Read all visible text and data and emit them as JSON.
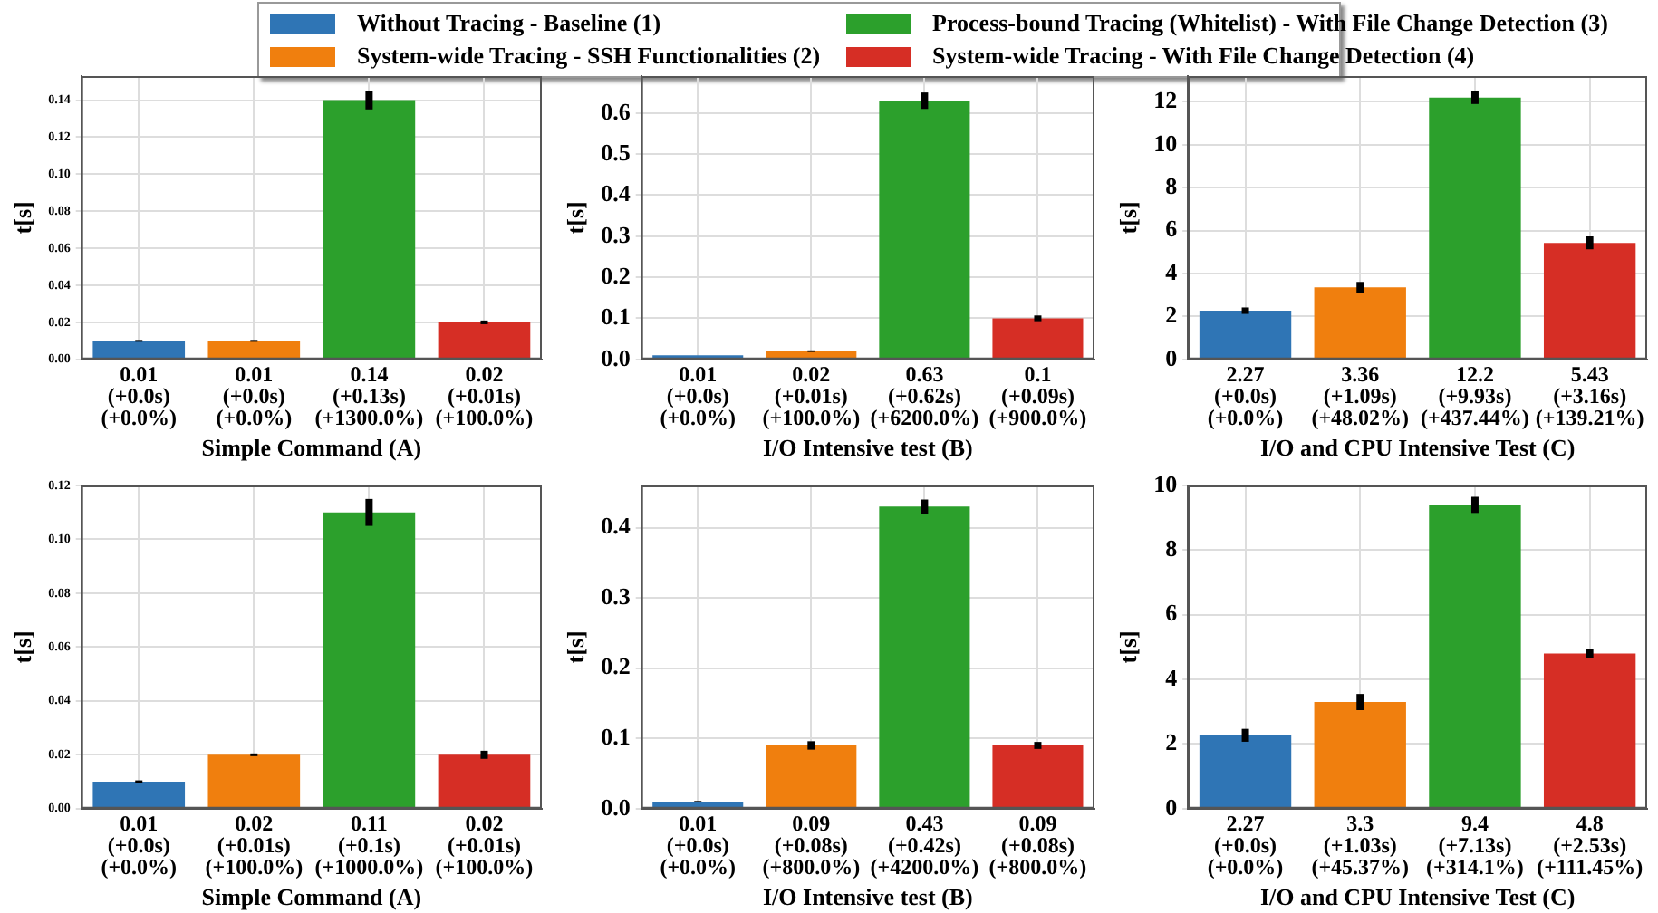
{
  "chart_data": [
    {
      "type": "bar",
      "xlabel": "Simple Command (A)",
      "ylabel": "t[s]",
      "legend": "top",
      "stacked": true,
      "grid": true,
      "categories": [
        "0.01\n(+0.0s)\n(+0.0%)",
        "0.01\n(+0.0s)\n(+0.0%)",
        "0.14\n(+0.13s)\n(+1300.0%)",
        "0.02\n(+0.01s)\n(+100.0%)"
      ],
      "ylim": [
        0,
        0.153
      ],
      "yticks": [
        {
          "value": 0,
          "label": "0.00"
        },
        {
          "value": 0.02,
          "label": "0.02"
        },
        {
          "value": 0.04,
          "label": "0.04"
        },
        {
          "value": 0.06,
          "label": "0.06"
        },
        {
          "value": 0.08,
          "label": "0.08"
        },
        {
          "value": 0.1,
          "label": "0.10"
        },
        {
          "value": 0.12,
          "label": "0.12"
        },
        {
          "value": 0.14,
          "label": "0.14"
        }
      ],
      "series": [
        {
          "name": "Without Tracing - Baseline (1)",
          "color": "#2f75b5",
          "values": [
            0.01,
            null,
            null,
            null
          ],
          "errors": [
            0.0005,
            null,
            null,
            null
          ]
        },
        {
          "name": "System-wide Tracing - SSH Functionalities (2)",
          "color": "#f07f0e",
          "values": [
            null,
            0.01,
            null,
            null
          ],
          "errors": [
            null,
            0.0005,
            null,
            null
          ]
        },
        {
          "name": "Process-bound Tracing (Whitelist) - With File Change Detection (3)",
          "color": "#2ca02c",
          "values": [
            null,
            null,
            0.14,
            null
          ],
          "errors": [
            null,
            null,
            0.005,
            null
          ]
        },
        {
          "name": "System-wide Tracing - With File Change Detection (4)",
          "color": "#d62e25",
          "values": [
            null,
            null,
            null,
            0.02
          ],
          "errors": [
            null,
            null,
            null,
            0.001
          ]
        }
      ]
    },
    {
      "type": "bar",
      "xlabel": "I/O Intensive test (B)",
      "ylabel": "t[s]",
      "stacked": true,
      "grid": true,
      "categories": [
        "0.01\n(+0.0s)\n(+0.0%)",
        "0.02\n(+0.01s)\n(+100.0%)",
        "0.63\n(+0.62s)\n(+6200.0%)",
        "0.1\n(+0.09s)\n(+900.0%)"
      ],
      "ylim": [
        0,
        0.69
      ],
      "yticks": [
        {
          "value": 0,
          "label": "0.0"
        },
        {
          "value": 0.1,
          "label": "0.1"
        },
        {
          "value": 0.2,
          "label": "0.2"
        },
        {
          "value": 0.3,
          "label": "0.3"
        },
        {
          "value": 0.4,
          "label": "0.4"
        },
        {
          "value": 0.5,
          "label": "0.5"
        },
        {
          "value": 0.6,
          "label": "0.6"
        }
      ],
      "series": [
        {
          "color": "#2f75b5",
          "values": [
            0.01,
            null,
            null,
            null
          ]
        },
        {
          "color": "#f07f0e",
          "values": [
            null,
            0.02,
            null,
            null
          ],
          "errors": [
            null,
            0.002,
            null,
            null
          ]
        },
        {
          "color": "#2ca02c",
          "values": [
            null,
            null,
            0.63,
            null
          ],
          "errors": [
            null,
            null,
            0.02,
            null
          ]
        },
        {
          "color": "#d62e25",
          "values": [
            null,
            null,
            null,
            0.1
          ],
          "errors": [
            null,
            null,
            null,
            0.007
          ]
        }
      ]
    },
    {
      "type": "bar",
      "xlabel": "I/O and CPU Intensive Test (C)",
      "ylabel": "t[s]",
      "stacked": true,
      "grid": true,
      "categories": [
        "2.27\n(+0.0s)\n(+0.0%)",
        "3.36\n(+1.09s)\n(+48.02%)",
        "12.2\n(+9.93s)\n(+437.44%)",
        "5.43\n(+3.16s)\n(+139.21%)"
      ],
      "ylim": [
        0,
        13.2
      ],
      "yticks": [
        0,
        2,
        4,
        6,
        8,
        10,
        12
      ],
      "series": [
        {
          "color": "#2f75b5",
          "values": [
            2.27,
            null,
            null,
            null
          ],
          "errors": [
            0.15,
            null,
            null,
            null
          ]
        },
        {
          "color": "#f07f0e",
          "values": [
            null,
            3.36,
            null,
            null
          ],
          "errors": [
            null,
            0.25,
            null,
            null
          ]
        },
        {
          "color": "#2ca02c",
          "values": [
            null,
            null,
            12.2,
            null
          ],
          "errors": [
            null,
            null,
            0.3,
            null
          ]
        },
        {
          "color": "#d62e25",
          "values": [
            null,
            null,
            null,
            5.43
          ],
          "errors": [
            null,
            null,
            null,
            0.3
          ]
        }
      ]
    },
    {
      "type": "bar",
      "xlabel": "Simple Command (A)",
      "ylabel": "t[s]",
      "stacked": true,
      "grid": true,
      "categories": [
        "0.01\n(+0.0s)\n(+0.0%)",
        "0.02\n(+0.01s)\n(+100.0%)",
        "0.11\n(+0.1s)\n(+1000.0%)",
        "0.02\n(+0.01s)\n(+100.0%)"
      ],
      "ylim": [
        0,
        0.12
      ],
      "yticks": [
        {
          "value": 0,
          "label": "0.00"
        },
        {
          "value": 0.02,
          "label": "0.02"
        },
        {
          "value": 0.04,
          "label": "0.04"
        },
        {
          "value": 0.06,
          "label": "0.06"
        },
        {
          "value": 0.08,
          "label": "0.08"
        },
        {
          "value": 0.1,
          "label": "0.10"
        },
        {
          "value": 0.12,
          "label": "0.12"
        }
      ],
      "series": [
        {
          "color": "#2f75b5",
          "values": [
            0.01,
            null,
            null,
            null
          ],
          "errors": [
            0.0005,
            null,
            null,
            null
          ]
        },
        {
          "color": "#f07f0e",
          "values": [
            null,
            0.02,
            null,
            null
          ],
          "errors": [
            null,
            0.0005,
            null,
            null
          ]
        },
        {
          "color": "#2ca02c",
          "values": [
            null,
            null,
            0.11,
            null
          ],
          "errors": [
            null,
            null,
            0.005,
            null
          ]
        },
        {
          "color": "#d62e25",
          "values": [
            null,
            null,
            null,
            0.02
          ],
          "errors": [
            null,
            null,
            null,
            0.0015
          ]
        }
      ]
    },
    {
      "type": "bar",
      "xlabel": "I/O Intensive test (B)",
      "ylabel": "t[s]",
      "stacked": true,
      "grid": true,
      "categories": [
        "0.01\n(+0.0s)\n(+0.0%)",
        "0.09\n(+0.08s)\n(+800.0%)",
        "0.43\n(+0.42s)\n(+4200.0%)",
        "0.09\n(+0.08s)\n(+800.0%)"
      ],
      "ylim": [
        0,
        0.46
      ],
      "yticks": [
        {
          "value": 0,
          "label": "0.0"
        },
        {
          "value": 0.1,
          "label": "0.1"
        },
        {
          "value": 0.2,
          "label": "0.2"
        },
        {
          "value": 0.3,
          "label": "0.3"
        },
        {
          "value": 0.4,
          "label": "0.4"
        }
      ],
      "series": [
        {
          "color": "#2f75b5",
          "values": [
            0.01,
            null,
            null,
            null
          ],
          "errors": [
            0.001,
            null,
            null,
            null
          ]
        },
        {
          "color": "#f07f0e",
          "values": [
            null,
            0.09,
            null,
            null
          ],
          "errors": [
            null,
            0.006,
            null,
            null
          ]
        },
        {
          "color": "#2ca02c",
          "values": [
            null,
            null,
            0.43,
            null
          ],
          "errors": [
            null,
            null,
            0.01,
            null
          ]
        },
        {
          "color": "#d62e25",
          "values": [
            null,
            null,
            null,
            0.09
          ],
          "errors": [
            null,
            null,
            null,
            0.005
          ]
        }
      ]
    },
    {
      "type": "bar",
      "xlabel": "I/O and CPU Intensive Test (C)",
      "ylabel": "t[s]",
      "stacked": true,
      "grid": true,
      "categories": [
        "2.27\n(+0.0s)\n(+0.0%)",
        "3.3\n(+1.03s)\n(+45.37%)",
        "9.4\n(+7.13s)\n(+314.1%)",
        "4.8\n(+2.53s)\n(+111.45%)"
      ],
      "ylim": [
        0,
        10
      ],
      "yticks": [
        0,
        2,
        4,
        6,
        8,
        10
      ],
      "series": [
        {
          "color": "#2f75b5",
          "values": [
            2.27,
            null,
            null,
            null
          ],
          "errors": [
            0.2,
            null,
            null,
            null
          ]
        },
        {
          "color": "#f07f0e",
          "values": [
            null,
            3.3,
            null,
            null
          ],
          "errors": [
            null,
            0.25,
            null,
            null
          ]
        },
        {
          "color": "#2ca02c",
          "values": [
            null,
            null,
            9.4,
            null
          ],
          "errors": [
            null,
            null,
            0.25,
            null
          ]
        },
        {
          "color": "#d62e25",
          "values": [
            null,
            null,
            null,
            4.8
          ],
          "errors": [
            null,
            null,
            null,
            0.15
          ]
        }
      ]
    }
  ]
}
